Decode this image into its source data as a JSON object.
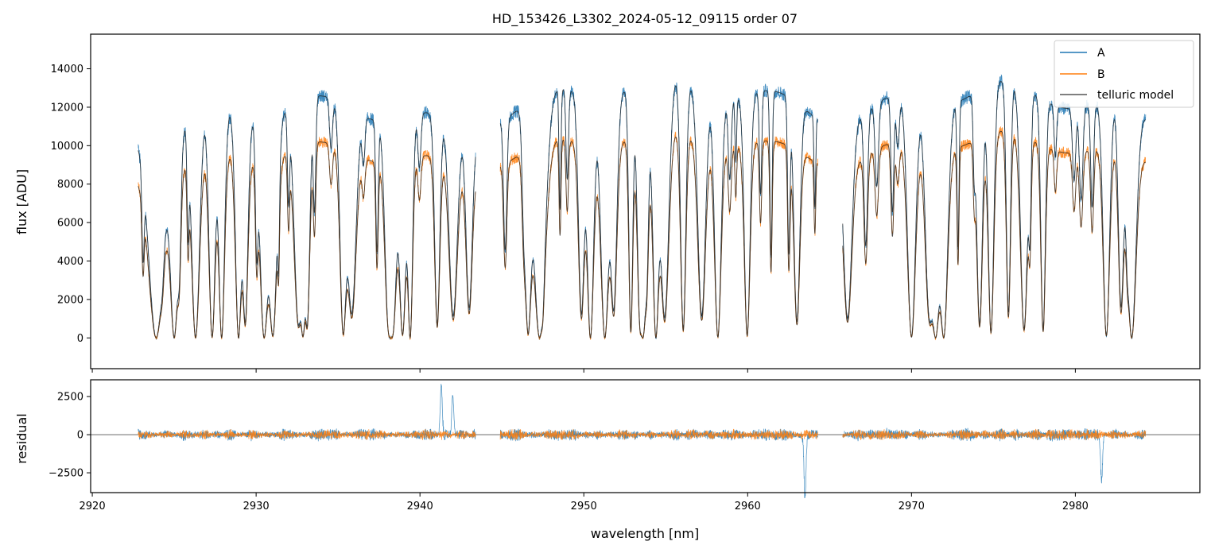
{
  "chart_data": [
    {
      "type": "line",
      "title": "HD_153426_L3302_2024-05-12_09115  order 07",
      "xlabel": "",
      "ylabel": "flux [ADU]",
      "xlim": [
        2919.9,
        2987.6
      ],
      "ylim": [
        -1600,
        15800
      ],
      "y_ticks": [
        0,
        2000,
        4000,
        6000,
        8000,
        10000,
        12000,
        14000
      ],
      "y_tick_labels": [
        "0",
        "2000",
        "4000",
        "6000",
        "8000",
        "10000",
        "12000",
        "14000"
      ],
      "legend": {
        "placement": "top-right",
        "entries": [
          "A",
          "B",
          "telluric model"
        ]
      },
      "series": [
        {
          "name": "A",
          "color": "#1f77b4",
          "segments": [
            {
              "x_range": [
                2922.8,
                2943.4
              ],
              "continuum_peak": 12600
            },
            {
              "x_range": [
                2944.9,
                2964.3
              ],
              "continuum_peak": 13800
            },
            {
              "x_range": [
                2965.8,
                2984.3
              ],
              "continuum_peak": 13400
            }
          ]
        },
        {
          "name": "B",
          "color": "#ff7f0e",
          "segments": [
            {
              "x_range": [
                2922.8,
                2943.4
              ],
              "continuum_peak": 10200
            },
            {
              "x_range": [
                2944.9,
                2964.3
              ],
              "continuum_peak": 11000
            },
            {
              "x_range": [
                2965.8,
                2984.3
              ],
              "continuum_peak": 10800
            }
          ]
        },
        {
          "name": "telluric model",
          "color": "#555555"
        }
      ]
    },
    {
      "type": "line",
      "title": "",
      "xlabel": "wavelength [nm]",
      "ylabel": "residual",
      "xlim": [
        2919.9,
        2987.6
      ],
      "ylim": [
        -3800,
        3600
      ],
      "x_ticks": [
        2920,
        2930,
        2940,
        2950,
        2960,
        2970,
        2980
      ],
      "x_tick_labels": [
        "2920",
        "2930",
        "2940",
        "2950",
        "2960",
        "2970",
        "2980"
      ],
      "y_ticks": [
        -2500,
        0,
        2500
      ],
      "y_tick_labels": [
        "−2500",
        "0",
        "2500"
      ],
      "zero_line": true,
      "features": [
        {
          "series": "A",
          "x": 2941.3,
          "y": 3200
        },
        {
          "series": "A",
          "x": 2942.0,
          "y": 2600
        },
        {
          "series": "A",
          "x": 2963.5,
          "y": -4200
        },
        {
          "series": "A",
          "x": 2981.6,
          "y": -3000
        }
      ]
    }
  ]
}
